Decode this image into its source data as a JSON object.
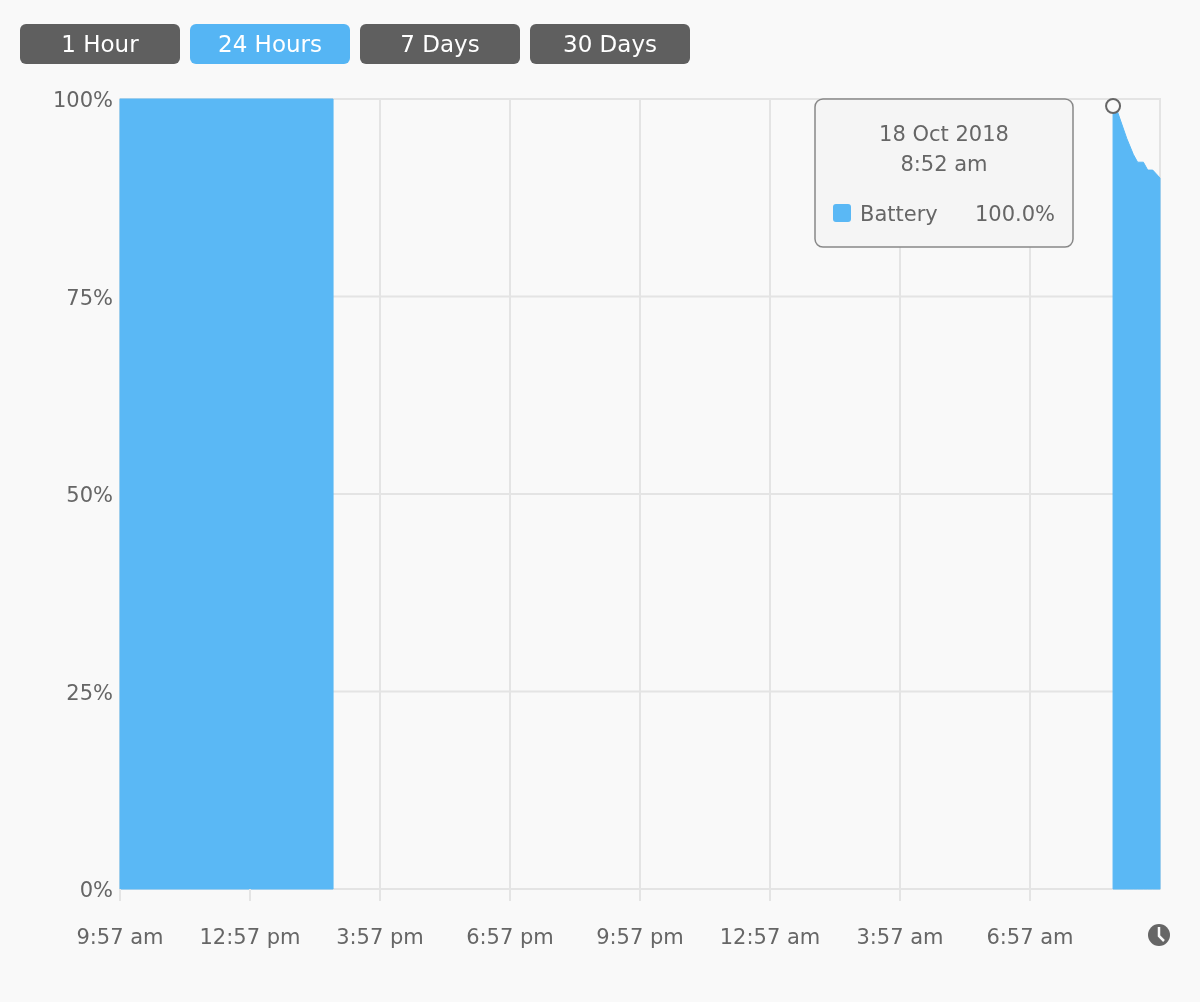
{
  "chart_data": {
    "type": "area",
    "x": [
      "2018-10-17T09:57",
      "2018-10-17T14:52",
      "2018-10-17T23:54",
      "2018-10-18T08:52",
      "2018-10-18T09:11",
      "2018-10-18T09:20",
      "2018-10-18T09:26",
      "2018-10-18T09:34",
      "2018-10-18T09:40",
      "2018-10-18T09:47",
      "2018-10-18T09:57"
    ],
    "series": [
      {
        "name": "Battery",
        "color": "#5ab8f5",
        "values": [
          100,
          100,
          null,
          100,
          95,
          93,
          92,
          92,
          91,
          91,
          90
        ]
      }
    ],
    "xlim": [
      "2018-10-17T09:57",
      "2018-10-18T09:57"
    ],
    "xticks": [
      {
        "value": "2018-10-17T09:57",
        "label": "9:57 am"
      },
      {
        "value": "2018-10-17T12:57",
        "label": "12:57 pm"
      },
      {
        "value": "2018-10-17T15:57",
        "label": "3:57 pm"
      },
      {
        "value": "2018-10-17T18:57",
        "label": "6:57 pm"
      },
      {
        "value": "2018-10-17T21:57",
        "label": "9:57 pm"
      },
      {
        "value": "2018-10-18T00:57",
        "label": "12:57 am"
      },
      {
        "value": "2018-10-18T03:57",
        "label": "3:57 am"
      },
      {
        "value": "2018-10-18T06:57",
        "label": "6:57 am"
      }
    ],
    "ylim": [
      0,
      100
    ],
    "yticks": [
      {
        "value": 0,
        "label": "0%"
      },
      {
        "value": 25,
        "label": "25%"
      },
      {
        "value": 50,
        "label": "50%"
      },
      {
        "value": 75,
        "label": "75%"
      },
      {
        "value": 100,
        "label": "100%"
      }
    ],
    "grid": true,
    "legend": "top right",
    "annotations": [
      "1 Hour",
      "24 Hours",
      "7 Days",
      "30 Days",
      "18 Oct 2018",
      "8:52 am",
      "100.0%"
    ]
  }
}
